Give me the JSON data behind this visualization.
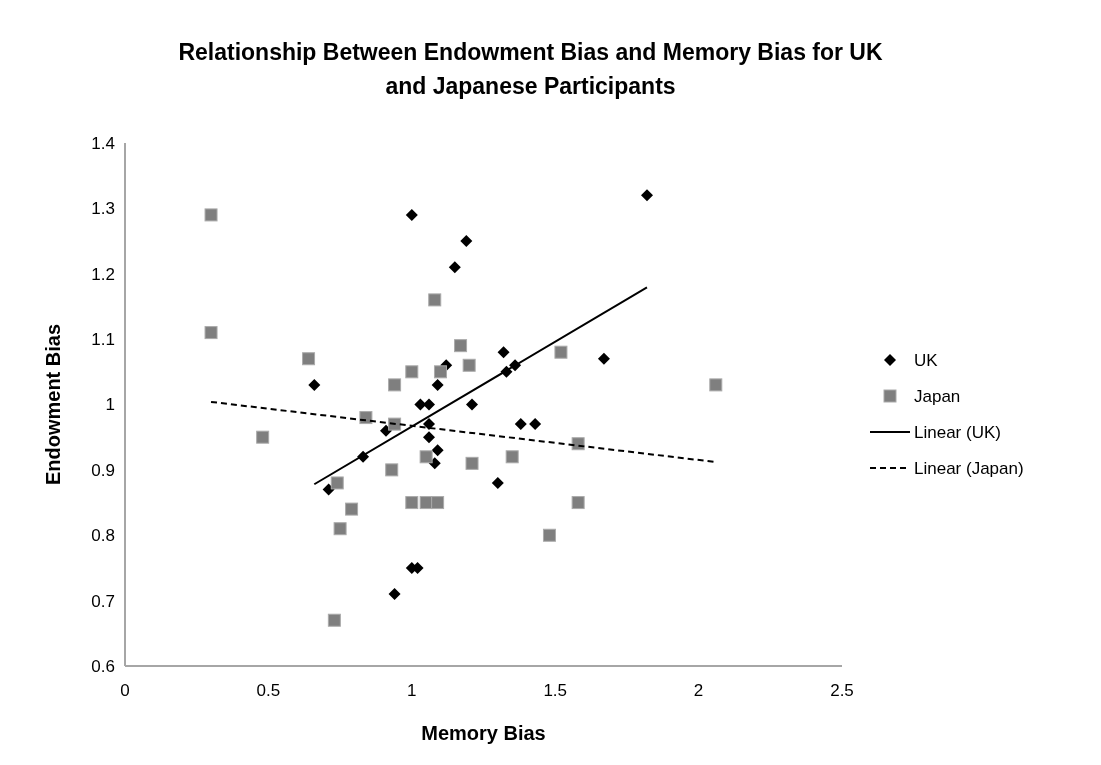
{
  "chart_data": {
    "type": "scatter",
    "title": "Relationship Between Endowment Bias and Memory Bias for UK and Japanese Participants",
    "xlabel": "Memory Bias",
    "ylabel": "Endowment Bias",
    "xlim": [
      0,
      2.5
    ],
    "xticks": [
      0,
      0.5,
      1,
      1.5,
      2,
      2.5
    ],
    "ylim": [
      0.6,
      1.4
    ],
    "yticks": [
      0.6,
      0.7,
      0.8,
      0.9,
      1,
      1.1,
      1.2,
      1.3,
      1.4
    ],
    "grid": false,
    "legend": "right",
    "series": [
      {
        "name": "UK",
        "color": "#000000",
        "marker": "diamond",
        "x": [
          1.0,
          1.19,
          1.15,
          1.32,
          1.36,
          1.33,
          1.12,
          0.66,
          1.09,
          1.03,
          1.06,
          1.21,
          1.38,
          1.43,
          1.06,
          0.91,
          1.06,
          1.09,
          0.83,
          1.08,
          1.3,
          0.71,
          null,
          1.0,
          1.02,
          0.94,
          1.67,
          1.82
        ],
        "values": [
          1.29,
          1.25,
          1.21,
          1.08,
          1.06,
          1.05,
          1.06,
          1.03,
          1.03,
          1.0,
          1.0,
          1.0,
          0.97,
          0.97,
          0.97,
          0.96,
          0.95,
          0.93,
          0.92,
          0.91,
          0.88,
          0.87,
          null,
          0.75,
          0.75,
          0.71,
          1.07,
          1.32
        ]
      },
      {
        "name": "Japan",
        "color": "#7f7f7f",
        "marker": "square",
        "x": [
          1.08,
          1.17,
          0.64,
          1.2,
          1.0,
          1.1,
          1.52,
          null,
          0.94,
          0.84,
          0.94,
          1.58,
          1.05,
          0.93,
          1.21,
          1.35,
          0.74,
          1.0,
          1.05,
          1.09,
          1.58,
          0.79,
          0.75,
          1.48,
          0.73,
          0.3,
          0.3,
          0.48,
          2.06
        ],
        "values": [
          1.16,
          1.09,
          1.07,
          1.06,
          1.05,
          1.05,
          1.08,
          null,
          1.03,
          0.98,
          0.97,
          0.94,
          0.92,
          0.9,
          0.91,
          0.92,
          0.88,
          0.85,
          0.85,
          0.85,
          0.85,
          0.84,
          0.81,
          0.8,
          0.67,
          1.29,
          1.11,
          0.95,
          1.03
        ]
      },
      {
        "name": "Linear (UK)",
        "type": "line",
        "color": "#000000",
        "line_style": "solid",
        "marker": "none",
        "x": [
          0.66,
          1.82
        ],
        "values": [
          0.878,
          1.179
        ]
      },
      {
        "name": "Linear (Japan)",
        "type": "line",
        "color": "#000000",
        "line_style": "dashed",
        "marker": "none",
        "x": [
          0.3,
          2.06
        ],
        "values": [
          1.004,
          0.912
        ]
      }
    ]
  }
}
